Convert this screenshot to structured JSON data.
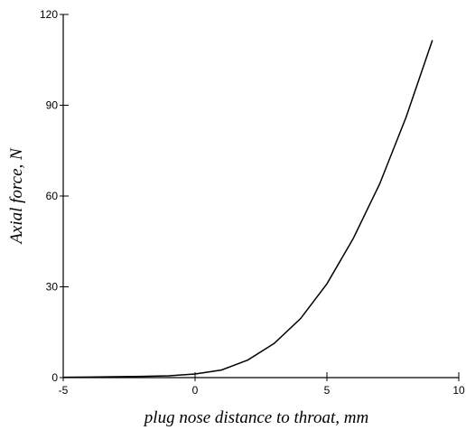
{
  "chart_data": {
    "type": "line",
    "title": "",
    "xlabel": "plug nose distance to throat, mm",
    "ylabel": "Axial force, N",
    "xlim": [
      -5,
      10
    ],
    "ylim": [
      0,
      120
    ],
    "xticks": [
      -5,
      0,
      5,
      10
    ],
    "yticks": [
      0,
      30,
      60,
      90,
      120
    ],
    "grid": false,
    "legend": "none",
    "series": [
      {
        "x": [
          -5,
          -4,
          -3,
          -2,
          -1,
          0,
          1,
          2,
          3,
          4,
          5,
          6,
          7,
          8,
          9
        ],
        "y": [
          0.1,
          0.2,
          0.3,
          0.4,
          0.6,
          1.2,
          2.5,
          5.8,
          11.3,
          19.5,
          31.0,
          46.0,
          64.0,
          86.0,
          111.5
        ],
        "color": "#000000"
      }
    ]
  }
}
